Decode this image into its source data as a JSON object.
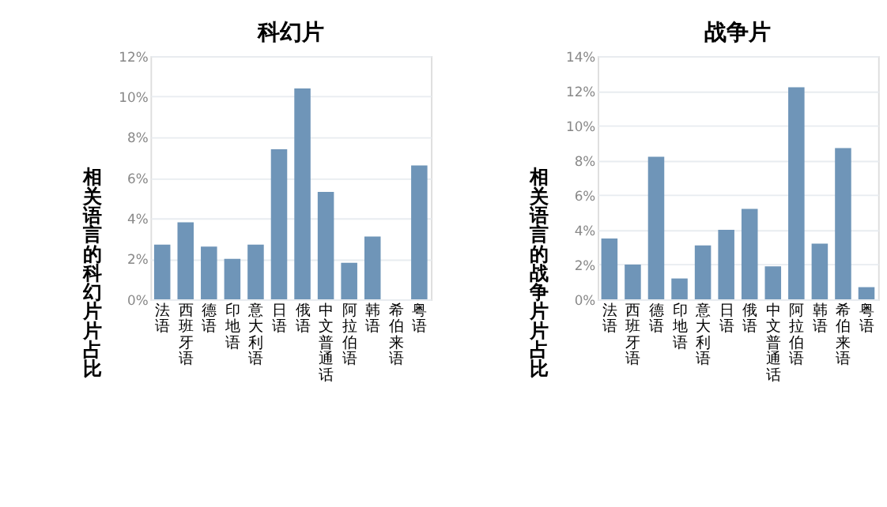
{
  "chart_data": [
    {
      "type": "bar",
      "title": "科幻片",
      "ylabel": "相关语言的科幻片片占比",
      "categories": [
        "法语",
        "西班牙语",
        "德语",
        "印地语",
        "意大利语",
        "日语",
        "俄语",
        "中文普通话",
        "阿拉伯语",
        "韩语",
        "希伯来语",
        "粤语"
      ],
      "series": [
        {
          "color": "#6f95b8",
          "values": [
            2.7,
            3.8,
            2.6,
            2.0,
            2.7,
            7.4,
            10.4,
            5.3,
            1.8,
            3.1,
            0,
            6.6
          ]
        }
      ],
      "ylim": [
        0,
        12
      ],
      "yticks": [
        {
          "value": 0,
          "label": "0%"
        },
        {
          "value": 2,
          "label": "2%"
        },
        {
          "value": 4,
          "label": "4%"
        },
        {
          "value": 6,
          "label": "6%"
        },
        {
          "value": 8,
          "label": "8%"
        },
        {
          "value": 10,
          "label": "10%"
        },
        {
          "value": 12,
          "label": "12%"
        }
      ],
      "grid": "y"
    },
    {
      "type": "bar",
      "title": "战争片",
      "ylabel": "相关语言的战争片片占比",
      "categories": [
        "法语",
        "西班牙语",
        "德语",
        "印地语",
        "意大利语",
        "日语",
        "俄语",
        "中文普通话",
        "阿拉伯语",
        "韩语",
        "希伯来语",
        "粤语"
      ],
      "series": [
        {
          "color": "#6f95b8",
          "values": [
            3.5,
            2.0,
            8.2,
            1.2,
            3.1,
            4.0,
            5.2,
            1.9,
            12.2,
            3.2,
            8.7,
            0.7
          ]
        }
      ],
      "ylim": [
        0,
        14
      ],
      "yticks": [
        {
          "value": 0,
          "label": "0%"
        },
        {
          "value": 2,
          "label": "2%"
        },
        {
          "value": 4,
          "label": "4%"
        },
        {
          "value": 6,
          "label": "6%"
        },
        {
          "value": 8,
          "label": "8%"
        },
        {
          "value": 10,
          "label": "10%"
        },
        {
          "value": 12,
          "label": "12%"
        },
        {
          "value": 14,
          "label": "14%"
        }
      ],
      "grid": "y"
    }
  ]
}
